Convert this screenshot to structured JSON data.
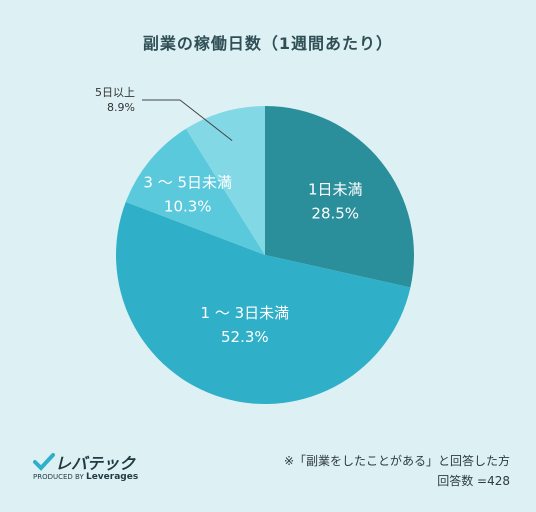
{
  "chart_data": {
    "type": "pie",
    "title": "副業の稼働日数（1週間あたり）",
    "slices": [
      {
        "label": "1日未満",
        "value_label": "28.5%",
        "value": 28.5,
        "color": "#2a8e9b"
      },
      {
        "label": "1 ～ 3日未満",
        "value_label": "52.3%",
        "value": 52.3,
        "color": "#2fb0c8"
      },
      {
        "label": "3 ～ 5日未満",
        "value_label": "10.3%",
        "value": 10.3,
        "color": "#5bc9dc"
      },
      {
        "label": "5日以上",
        "value_label": "8.9%",
        "value": 8.9,
        "color": "#82d8e4"
      }
    ],
    "start": "12 o'clock",
    "direction": "clockwise"
  },
  "brand": {
    "name": "レバテック",
    "produced_by": "PRODUCED BY",
    "company": "Leverages"
  },
  "footnote": {
    "line1": "※「副業をしたことがある」と回答した方",
    "line2": "回答数 =428"
  }
}
